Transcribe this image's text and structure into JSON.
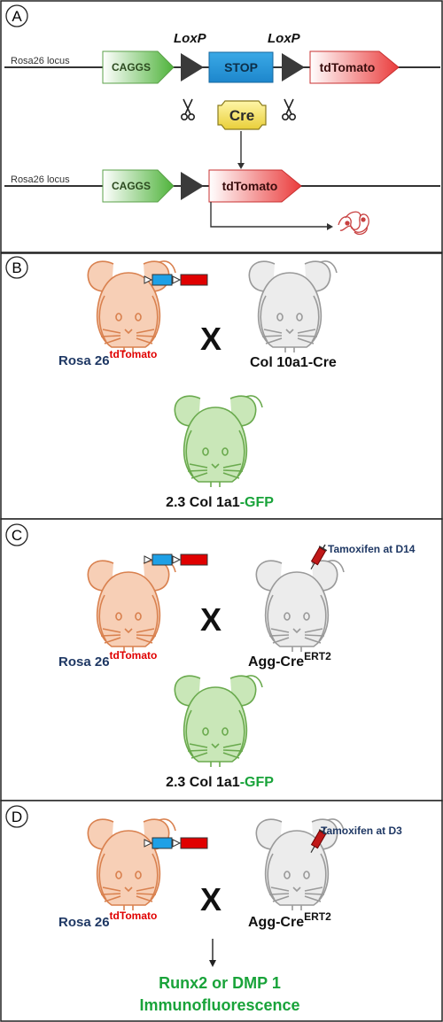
{
  "panels": {
    "a": {
      "letter": "A"
    },
    "b": {
      "letter": "B"
    },
    "c": {
      "letter": "C"
    },
    "d": {
      "letter": "D"
    }
  },
  "construct": {
    "locus_label": "Rosa26 locus",
    "promoter": "CAGGS",
    "loxp_label": "LoxP",
    "stop_label": "STOP",
    "reporter": "tdTomato",
    "enzyme": "Cre"
  },
  "crosses": {
    "rosa_main": "Rosa 26",
    "rosa_sup": "tdTomato",
    "cross_symbol": "X",
    "col10": "Col 10a1-Cre",
    "agg_main": "Agg-Cre",
    "agg_sup": "ERT2",
    "gfp_prefix": "2.3 Col 1a1",
    "gfp_suffix": "-GFP",
    "tamoxifen_c": "Tamoxifen at D14",
    "tamoxifen_d": "Tamoxifen at D3",
    "outcome_line1": "Runx2 or DMP 1",
    "outcome_line2": "Immunofluorescence"
  },
  "colors": {
    "navy": "#1f3864",
    "red": "#e00000",
    "green": "#19a33a",
    "mouse_orange": "#f7cfb6",
    "mouse_orange_line": "#d9814f",
    "mouse_gray": "#ececec",
    "mouse_gray_line": "#9a9a9a",
    "mouse_green": "#c9e7b8",
    "mouse_green_line": "#6aaa4e"
  },
  "icons": [
    "scissors-icon",
    "protein-icon",
    "syringe-icon",
    "mouse-icon",
    "loxp-triangle-icon"
  ]
}
